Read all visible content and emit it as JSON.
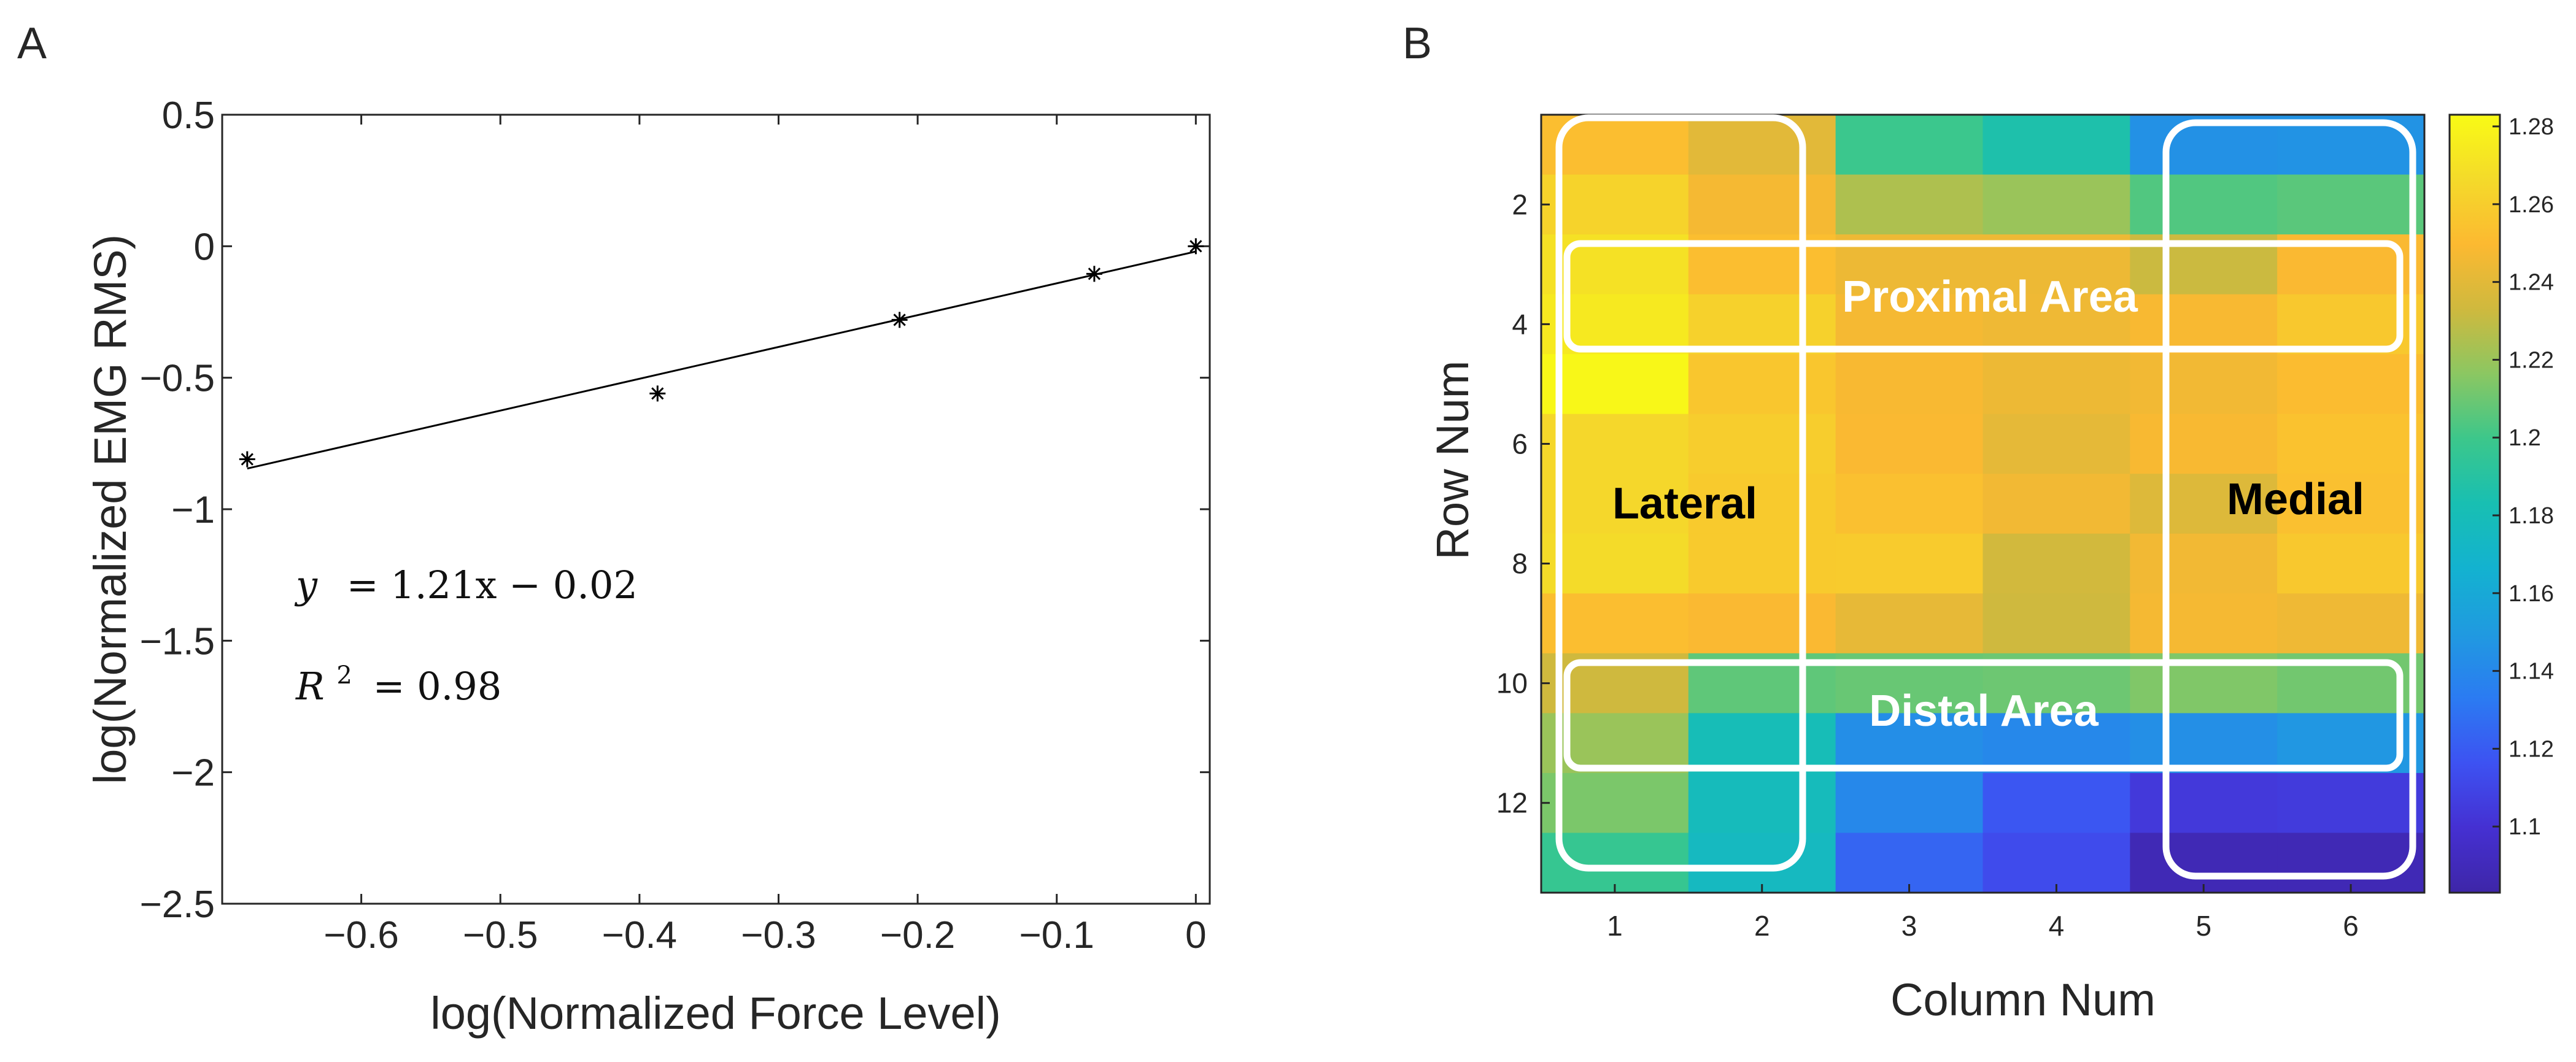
{
  "chart_data": [
    {
      "panel": "A",
      "type": "scatter",
      "xlabel": "log(Normalized Force Level)",
      "ylabel": "log(Normalized EMG RMS)",
      "xlim": [
        -0.7,
        0.01
      ],
      "ylim": [
        -2.5,
        0.5
      ],
      "xticks": [
        -0.6,
        -0.5,
        -0.4,
        -0.3,
        -0.2,
        -0.1,
        0
      ],
      "xtick_labels": [
        "−0.6",
        "−0.5",
        "−0.4",
        "−0.3",
        "−0.2",
        "−0.1",
        "0"
      ],
      "yticks": [
        0.5,
        0,
        -0.5,
        -1,
        -1.5,
        -2,
        -2.5
      ],
      "ytick_labels": [
        "0.5",
        "0",
        "−0.5",
        "−1",
        "−1.5",
        "−2",
        "−2.5"
      ],
      "points": [
        {
          "x": -0.682,
          "y": -0.81
        },
        {
          "x": -0.387,
          "y": -0.56
        },
        {
          "x": -0.213,
          "y": -0.28
        },
        {
          "x": -0.073,
          "y": -0.105
        },
        {
          "x": 0.0,
          "y": 0.0
        }
      ],
      "fit": {
        "slope": 1.21,
        "intercept": -0.02,
        "x_range": [
          -0.682,
          0.0
        ]
      },
      "equation": "y = 1.21x − 0.02",
      "equation_lhs": "y",
      "equation_rhs": "= 1.21x − 0.02",
      "r2_label": "R",
      "r2_sup": "2",
      "r2_value": "= 0.98"
    },
    {
      "panel": "B",
      "type": "heatmap",
      "xlabel": "Column Num",
      "ylabel": "Row Num",
      "xticks": [
        1,
        2,
        3,
        4,
        5,
        6
      ],
      "xtick_labels": [
        "1",
        "2",
        "3",
        "4",
        "5",
        "6"
      ],
      "yticks": [
        2,
        4,
        6,
        8,
        10,
        12
      ],
      "ytick_labels": [
        "2",
        "4",
        "6",
        "8",
        "10",
        "12"
      ],
      "rows": 13,
      "cols": 6,
      "values": [
        [
          1.252,
          1.24,
          1.199,
          1.186,
          1.145,
          1.146
        ],
        [
          1.263,
          1.247,
          1.225,
          1.22,
          1.204,
          1.206
        ],
        [
          1.27,
          1.252,
          1.244,
          1.244,
          1.232,
          1.249
        ],
        [
          1.274,
          1.262,
          1.247,
          1.245,
          1.248,
          1.257
        ],
        [
          1.281,
          1.256,
          1.248,
          1.244,
          1.246,
          1.251
        ],
        [
          1.265,
          1.26,
          1.249,
          1.241,
          1.248,
          1.254
        ],
        [
          1.265,
          1.258,
          1.253,
          1.246,
          1.238,
          1.253
        ],
        [
          1.267,
          1.258,
          1.259,
          1.234,
          1.246,
          1.257
        ],
        [
          1.252,
          1.249,
          1.242,
          1.233,
          1.247,
          1.245
        ],
        [
          1.233,
          1.207,
          1.209,
          1.21,
          1.214,
          1.211
        ],
        [
          1.22,
          1.18,
          1.143,
          1.14,
          1.144,
          1.148
        ],
        [
          1.213,
          1.178,
          1.14,
          1.118,
          1.104,
          1.105
        ],
        [
          1.197,
          1.175,
          1.124,
          1.113,
          1.088,
          1.088
        ]
      ],
      "clim": [
        1.083,
        1.283
      ],
      "colorbar_ticks": [
        1.28,
        1.26,
        1.24,
        1.22,
        1.2,
        1.18,
        1.16,
        1.14,
        1.12,
        1.1
      ],
      "colorbar_tick_labels": [
        "1.28",
        "1.26",
        "1.24",
        "1.22",
        "1.2",
        "1.18",
        "1.16",
        "1.14",
        "1.12",
        "1.1"
      ],
      "colormap": [
        "#3e26a8",
        "#4530d2",
        "#3d52f2",
        "#2b7bf2",
        "#209ae0",
        "#13b2d0",
        "#18bfb2",
        "#3cc78b",
        "#8bc762",
        "#cfb93e",
        "#fcb931",
        "#f4da2a",
        "#f9fb15"
      ],
      "regions": [
        {
          "label": "Lateral",
          "color": "#000000"
        },
        {
          "label": "Medial",
          "color": "#000000"
        },
        {
          "label": "Proximal Area",
          "color": "#ffffff"
        },
        {
          "label": "Distal Area",
          "color": "#ffffff"
        }
      ]
    }
  ],
  "panel_labels": [
    "A",
    "B"
  ],
  "colors": {
    "axis": "#262626",
    "box": "#ffffff",
    "marker": "#000000",
    "fit_line": "#000000"
  }
}
